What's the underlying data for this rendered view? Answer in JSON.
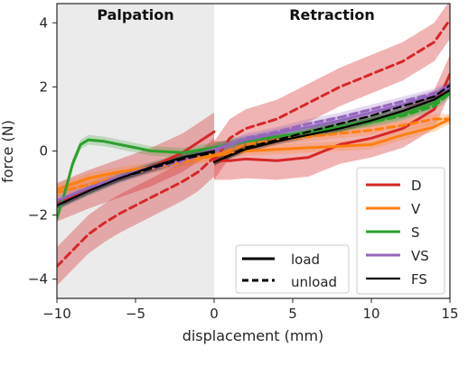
{
  "chart_data": {
    "type": "line",
    "xlabel": "displacement (mm)",
    "ylabel": "force (N)",
    "xlim": [
      -10,
      15
    ],
    "ylim": [
      -4.6,
      4.6
    ],
    "x_ticks": [
      -10,
      -5,
      0,
      5,
      10,
      15
    ],
    "x_tick_labels": [
      "−10",
      "−5",
      "0",
      "5",
      "10",
      "15"
    ],
    "y_ticks": [
      -4,
      -2,
      0,
      2,
      4
    ],
    "y_tick_labels": [
      "−4",
      "−2",
      "0",
      "2",
      "4"
    ],
    "grid": false,
    "regions": [
      {
        "label": "Palpation",
        "x_range": [
          -10,
          0
        ],
        "color": "#ebebeb"
      },
      {
        "label": "Retraction",
        "x_range": [
          0,
          15
        ],
        "color": "#ffffff"
      }
    ],
    "series": [
      {
        "name": "D",
        "color": "#d62728",
        "band": 0.6,
        "load_x": [
          -10,
          -8,
          -6,
          -4,
          -2,
          0
        ],
        "load_y": [
          -1.6,
          -1.2,
          -0.85,
          -0.5,
          -0.05,
          0.6
        ],
        "unload_x": [
          -10,
          -9,
          -8,
          -7,
          -6,
          -5,
          -4,
          -3,
          -2,
          -1,
          0
        ],
        "unload_y": [
          -3.6,
          -3.1,
          -2.6,
          -2.25,
          -1.95,
          -1.7,
          -1.45,
          -1.2,
          -0.95,
          -0.65,
          -0.2
        ],
        "ret_load_x": [
          0,
          1,
          2,
          4,
          6,
          8,
          10,
          12,
          14,
          15
        ],
        "ret_load_y": [
          -0.3,
          -0.3,
          -0.25,
          -0.3,
          -0.2,
          0.2,
          0.4,
          0.7,
          1.3,
          2.4
        ],
        "ret_unload_x": [
          0,
          1,
          2,
          4,
          6,
          8,
          10,
          12,
          14,
          15
        ],
        "ret_unload_y": [
          -0.3,
          0.4,
          0.7,
          1.0,
          1.5,
          2.0,
          2.4,
          2.8,
          3.4,
          4.1
        ]
      },
      {
        "name": "V",
        "color": "#ff7f0e",
        "band": 0.15,
        "load_x": [
          -10,
          -8,
          -6,
          -4,
          -2,
          0
        ],
        "load_y": [
          -1.2,
          -0.85,
          -0.65,
          -0.5,
          -0.3,
          -0.1
        ],
        "unload_x": [
          -10,
          -8,
          -6,
          -4,
          -2,
          0
        ],
        "unload_y": [
          -1.3,
          -1.05,
          -0.8,
          -0.55,
          -0.35,
          -0.15
        ],
        "ret_load_x": [
          0,
          2,
          4,
          6,
          8,
          10,
          12,
          14,
          15
        ],
        "ret_load_y": [
          -0.15,
          0.0,
          0.05,
          0.1,
          0.15,
          0.2,
          0.5,
          0.75,
          1.0
        ],
        "ret_unload_x": [
          0,
          2,
          4,
          6,
          8,
          10,
          12,
          14,
          15
        ],
        "ret_unload_y": [
          -0.15,
          0.2,
          0.35,
          0.45,
          0.55,
          0.65,
          0.8,
          1.0,
          1.0
        ]
      },
      {
        "name": "S",
        "color": "#2ca02c",
        "band": 0.15,
        "load_x": [
          -10,
          -9.5,
          -9,
          -8.5,
          -8,
          -7,
          -6,
          -5,
          -4,
          -2,
          0
        ],
        "load_y": [
          -2.1,
          -1.3,
          -0.4,
          0.2,
          0.35,
          0.3,
          0.2,
          0.1,
          0.0,
          -0.05,
          0.1
        ],
        "unload_x": [
          -10,
          -8,
          -6,
          -4,
          -2,
          0
        ],
        "unload_y": [
          -1.7,
          -1.25,
          -0.85,
          -0.5,
          -0.2,
          0.05
        ],
        "ret_load_x": [
          0,
          2,
          4,
          6,
          8,
          10,
          12,
          14,
          15
        ],
        "ret_load_y": [
          0.1,
          0.3,
          0.45,
          0.6,
          0.75,
          0.95,
          1.15,
          1.5,
          1.9
        ],
        "ret_unload_x": [
          0,
          2,
          4,
          6,
          8,
          10,
          12,
          14,
          15
        ],
        "ret_unload_y": [
          0.1,
          0.3,
          0.45,
          0.6,
          0.75,
          0.9,
          1.1,
          1.4,
          1.8
        ]
      },
      {
        "name": "VS",
        "color": "#9467bd",
        "band": 0.15,
        "load_x": [
          -10,
          -8,
          -6,
          -4,
          -2,
          0
        ],
        "load_y": [
          -1.55,
          -1.15,
          -0.8,
          -0.5,
          -0.25,
          0.05
        ],
        "unload_x": [
          -10,
          -8,
          -6,
          -4,
          -2,
          0
        ],
        "unload_y": [
          -1.7,
          -1.25,
          -0.85,
          -0.55,
          -0.3,
          0.0
        ],
        "ret_load_x": [
          0,
          2,
          4,
          6,
          8,
          10,
          12,
          14,
          15
        ],
        "ret_load_y": [
          0.05,
          0.35,
          0.55,
          0.75,
          0.95,
          1.2,
          1.45,
          1.75,
          2.0
        ],
        "ret_unload_x": [
          0,
          2,
          4,
          6,
          8,
          10,
          12,
          14,
          15
        ],
        "ret_unload_y": [
          0.0,
          0.4,
          0.6,
          0.85,
          1.05,
          1.3,
          1.55,
          1.8,
          2.05
        ]
      },
      {
        "name": "FS",
        "color": "#000000",
        "band": 0.1,
        "load_x": [
          -10,
          -8,
          -6,
          -4,
          -2,
          0
        ],
        "load_y": [
          -1.7,
          -1.25,
          -0.85,
          -0.5,
          -0.2,
          0.0
        ],
        "unload_x": [
          -10,
          -8,
          -6,
          -4,
          -2,
          0
        ],
        "unload_y": [
          -1.7,
          -1.25,
          -0.85,
          -0.55,
          -0.25,
          -0.05
        ],
        "ret_load_x": [
          0,
          2,
          4,
          6,
          8,
          10,
          12,
          14,
          15
        ],
        "ret_load_y": [
          -0.35,
          0.05,
          0.3,
          0.5,
          0.7,
          0.95,
          1.25,
          1.6,
          1.9
        ],
        "ret_unload_x": [
          0,
          2,
          4,
          6,
          8,
          10,
          12,
          14,
          15
        ],
        "ret_unload_y": [
          -0.35,
          0.1,
          0.35,
          0.6,
          0.85,
          1.1,
          1.4,
          1.7,
          2.05
        ]
      }
    ],
    "line_style_legend": [
      {
        "label": "load",
        "style": "solid"
      },
      {
        "label": "unload",
        "style": "dashed"
      }
    ],
    "legend_placement": "bottom-right"
  }
}
